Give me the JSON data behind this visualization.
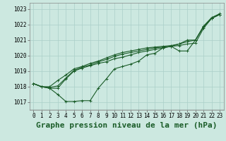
{
  "title": "Graphe pression niveau de la mer (hPa)",
  "background_color": "#cce8e0",
  "grid_color": "#aacfc8",
  "line_color": "#1a5c28",
  "xlim": [
    -0.5,
    23.5
  ],
  "ylim": [
    1016.5,
    1023.4
  ],
  "yticks": [
    1017,
    1018,
    1019,
    1020,
    1021,
    1022,
    1023
  ],
  "xticks": [
    0,
    1,
    2,
    3,
    4,
    5,
    6,
    7,
    8,
    9,
    10,
    11,
    12,
    13,
    14,
    15,
    16,
    17,
    18,
    19,
    20,
    21,
    22,
    23
  ],
  "series": [
    [
      1018.2,
      1018.0,
      1017.9,
      1017.5,
      1017.05,
      1017.05,
      1017.1,
      1017.1,
      1017.9,
      1018.5,
      1019.15,
      1019.3,
      1019.45,
      1019.65,
      1020.05,
      1020.15,
      1020.5,
      1020.6,
      1020.3,
      1020.3,
      1021.0,
      1021.85,
      1022.4,
      1022.65
    ],
    [
      1018.2,
      1018.0,
      1017.9,
      1017.9,
      1018.5,
      1019.0,
      1019.2,
      1019.35,
      1019.5,
      1019.6,
      1019.8,
      1019.9,
      1020.05,
      1020.2,
      1020.3,
      1020.4,
      1020.5,
      1020.6,
      1020.65,
      1020.75,
      1020.8,
      1021.75,
      1022.4,
      1022.65
    ],
    [
      1018.2,
      1018.0,
      1017.95,
      1018.05,
      1018.55,
      1019.05,
      1019.25,
      1019.4,
      1019.6,
      1019.75,
      1019.95,
      1020.1,
      1020.2,
      1020.3,
      1020.4,
      1020.5,
      1020.55,
      1020.6,
      1020.75,
      1020.9,
      1021.0,
      1021.85,
      1022.4,
      1022.65
    ],
    [
      1018.2,
      1018.0,
      1018.0,
      1018.4,
      1018.75,
      1019.15,
      1019.3,
      1019.5,
      1019.65,
      1019.85,
      1020.05,
      1020.2,
      1020.3,
      1020.4,
      1020.5,
      1020.55,
      1020.6,
      1020.65,
      1020.75,
      1021.0,
      1021.0,
      1021.9,
      1022.45,
      1022.7
    ]
  ],
  "marker": "+",
  "markersize": 3,
  "linewidth": 0.8,
  "title_fontsize": 8,
  "tick_fontsize": 5.5
}
